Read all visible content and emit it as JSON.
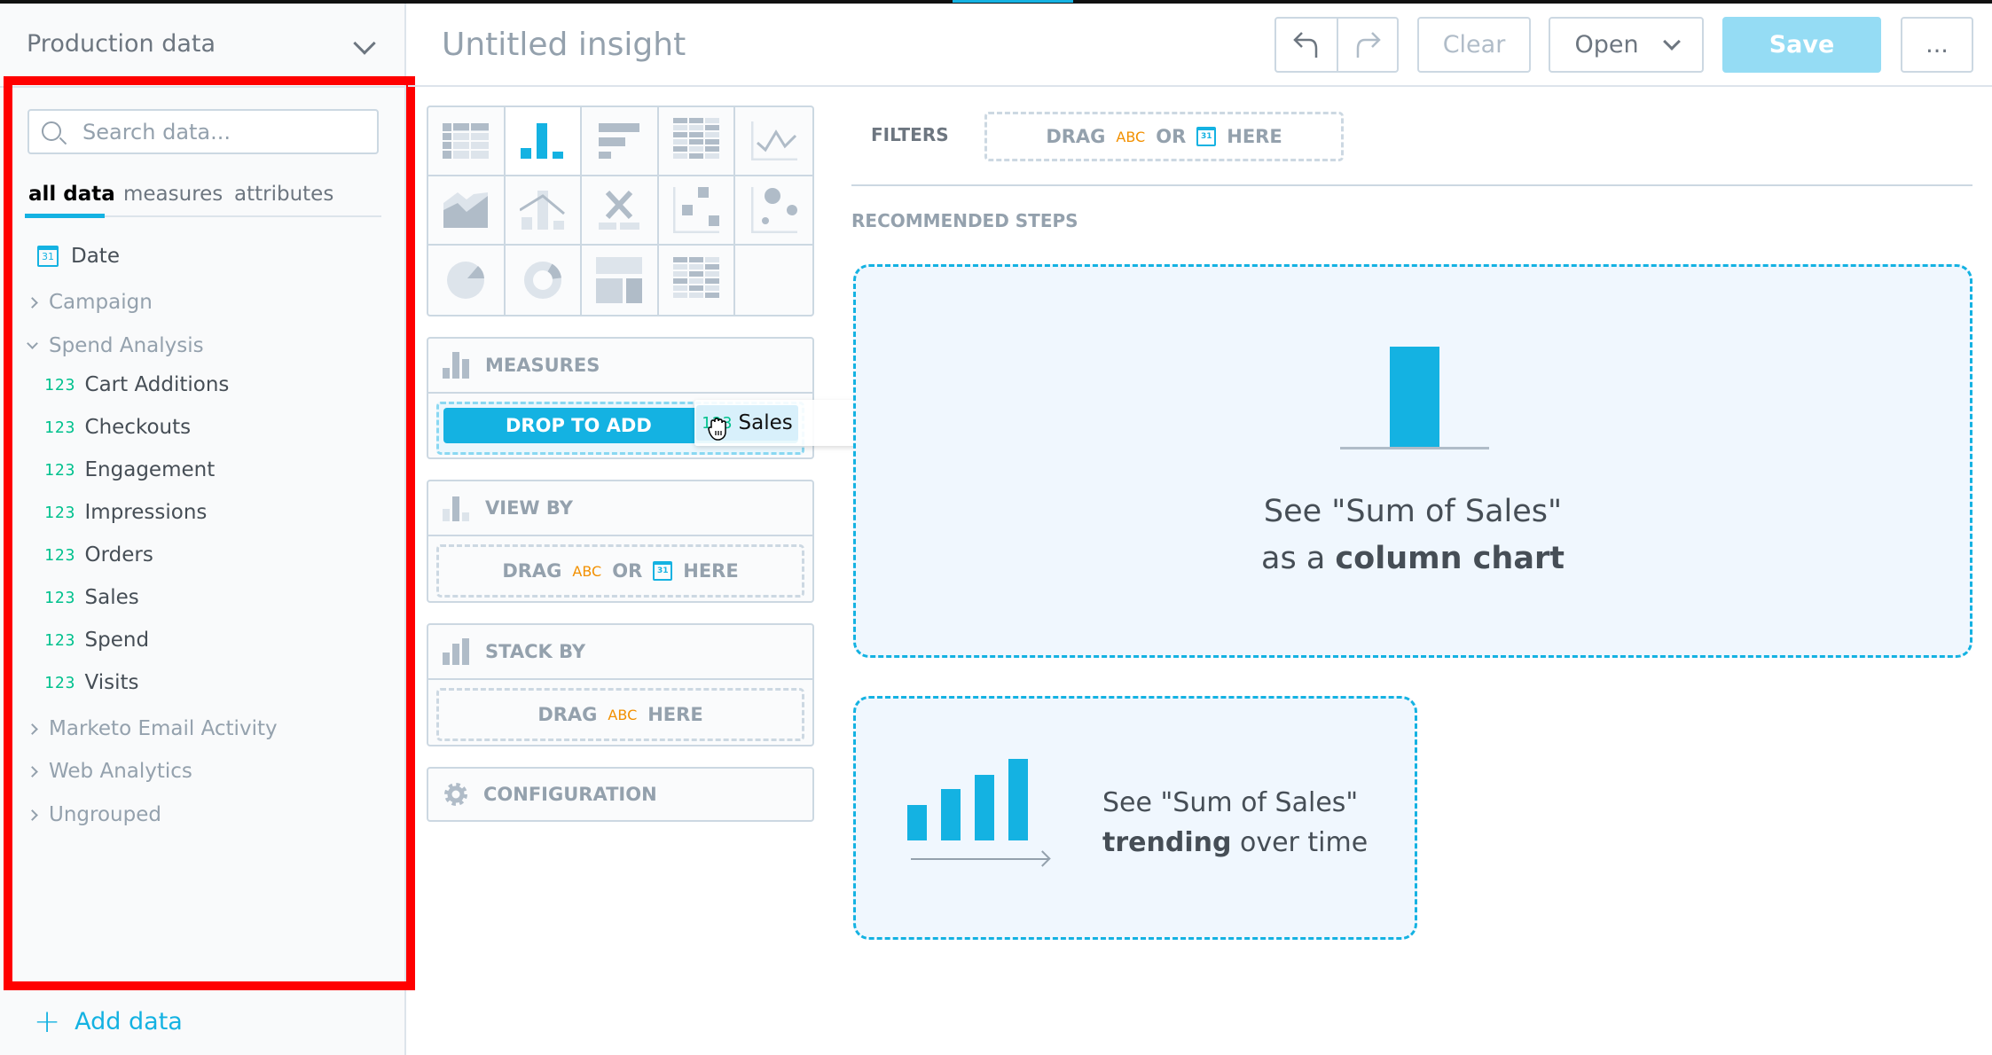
{
  "sidebar": {
    "dataset": "Production data",
    "search_placeholder": "Search data...",
    "tabs": [
      "all data",
      "measures",
      "attributes"
    ],
    "date": "Date",
    "date_icon_day": "31",
    "groups": {
      "campaign": "Campaign",
      "spend": "Spend Analysis",
      "marketo": "Marketo Email Activity",
      "web": "Web Analytics",
      "ungrouped": "Ungrouped"
    },
    "measure_prefix": "123",
    "measures": [
      "Cart Additions",
      "Checkouts",
      "Engagement",
      "Impressions",
      "Orders",
      "Sales",
      "Spend",
      "Visits"
    ],
    "add_data": "Add data",
    "add_icon": "+"
  },
  "header": {
    "title": "Untitled insight",
    "clear": "Clear",
    "open": "Open",
    "save": "Save",
    "more": "..."
  },
  "buckets": {
    "measures": "MEASURES",
    "view_by": "VIEW BY",
    "stack_by": "STACK BY",
    "configuration": "CONFIGURATION",
    "drag": "DRAG",
    "or": "OR",
    "here": "HERE",
    "abc": "ABC",
    "drop_to_add": "DROP TO ADD"
  },
  "drag_item": {
    "prefix": "123",
    "label": "Sales"
  },
  "filters": {
    "label": "FILTERS"
  },
  "recommended": {
    "label": "RECOMMENDED STEPS",
    "card1_line1": "See \"Sum of Sales\"",
    "card1_line2_pre": "as a ",
    "card1_line2_bold": "column chart",
    "card2_line1": "See \"Sum of Sales\"",
    "card2_line2_bold": "trending",
    "card2_line2_post": " over time"
  },
  "colors": {
    "accent": "#14b2e2",
    "measure": "#00c18d",
    "attribute": "#f29000",
    "save_disabled": "#95dcf4",
    "highlight": "#ff0000"
  }
}
